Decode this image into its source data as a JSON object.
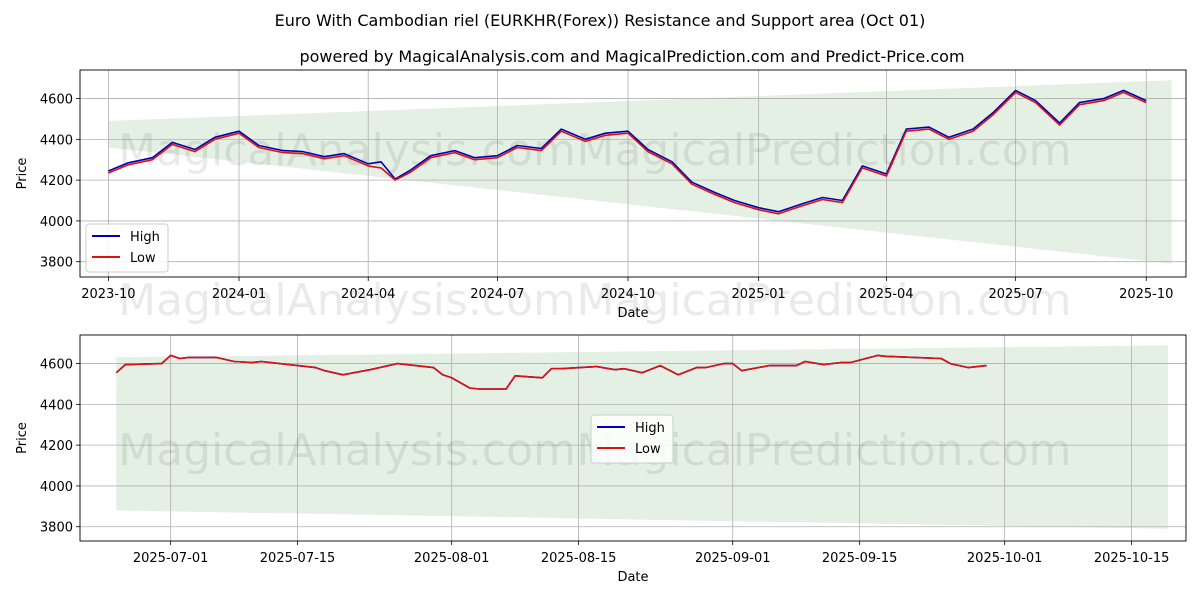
{
  "figure": {
    "title": "Euro With Cambodian riel (EURKHR(Forex)) Resistance and Support area (Oct 01)",
    "subtitle": "powered by MagicalAnalysis.com and MagicalPrediction.com and Predict-Price.com",
    "watermarks": [
      "MagicalAnalysis.com",
      "MagicalPrediction.com"
    ]
  },
  "colors": {
    "high": "#0000bb",
    "low": "#dd1111",
    "band": "#d2e6d2",
    "grid": "#b0b0b0"
  },
  "chart_data": [
    {
      "type": "line",
      "xlabel": "Date",
      "ylabel": "Price",
      "x_tick_labels": [
        "2023-10",
        "2024-01",
        "2024-04",
        "2024-07",
        "2024-10",
        "2025-01",
        "2025-04",
        "2025-07",
        "2025-10"
      ],
      "y_ticks": [
        3800,
        4000,
        4200,
        4400,
        4600
      ],
      "xlim": [
        "2023-09-11",
        "2025-10-29"
      ],
      "ylim": [
        3725,
        4740
      ],
      "grid": true,
      "legend": "lower-left",
      "band": {
        "x": [
          "2023-10-01",
          "2025-10-19"
        ],
        "upper": [
          4490,
          4690
        ],
        "lower": [
          4360,
          3790
        ]
      },
      "series": [
        {
          "name": "High",
          "x": [
            "2023-10-01",
            "2023-10-15",
            "2023-11-01",
            "2023-11-15",
            "2023-12-01",
            "2023-12-15",
            "2024-01-01",
            "2024-01-15",
            "2024-02-01",
            "2024-02-15",
            "2024-03-01",
            "2024-03-15",
            "2024-04-01",
            "2024-04-10",
            "2024-04-20",
            "2024-05-01",
            "2024-05-15",
            "2024-06-01",
            "2024-06-15",
            "2024-07-01",
            "2024-07-15",
            "2024-08-01",
            "2024-08-15",
            "2024-09-01",
            "2024-09-15",
            "2024-10-01",
            "2024-10-15",
            "2024-11-01",
            "2024-11-15",
            "2024-12-01",
            "2024-12-15",
            "2025-01-01",
            "2025-01-15",
            "2025-02-01",
            "2025-02-15",
            "2025-03-01",
            "2025-03-15",
            "2025-04-01",
            "2025-04-15",
            "2025-05-01",
            "2025-05-15",
            "2025-06-01",
            "2025-06-15",
            "2025-07-01",
            "2025-07-15",
            "2025-08-01",
            "2025-08-15",
            "2025-09-01",
            "2025-09-15",
            "2025-10-01"
          ],
          "y": [
            4245,
            4285,
            4310,
            4385,
            4350,
            4410,
            4440,
            4370,
            4345,
            4340,
            4315,
            4330,
            4280,
            4290,
            4205,
            4250,
            4320,
            4345,
            4310,
            4320,
            4370,
            4355,
            4450,
            4400,
            4430,
            4440,
            4350,
            4290,
            4190,
            4140,
            4100,
            4065,
            4045,
            4085,
            4115,
            4100,
            4270,
            4230,
            4450,
            4460,
            4410,
            4450,
            4530,
            4640,
            4590,
            4480,
            4580,
            4600,
            4640,
            4590
          ]
        },
        {
          "name": "Low",
          "x": [
            "2023-10-01",
            "2023-10-15",
            "2023-11-01",
            "2023-11-15",
            "2023-12-01",
            "2023-12-15",
            "2024-01-01",
            "2024-01-15",
            "2024-02-01",
            "2024-02-15",
            "2024-03-01",
            "2024-03-15",
            "2024-04-01",
            "2024-04-10",
            "2024-04-20",
            "2024-05-01",
            "2024-05-15",
            "2024-06-01",
            "2024-06-15",
            "2024-07-01",
            "2024-07-15",
            "2024-08-01",
            "2024-08-15",
            "2024-09-01",
            "2024-09-15",
            "2024-10-01",
            "2024-10-15",
            "2024-11-01",
            "2024-11-15",
            "2024-12-01",
            "2024-12-15",
            "2025-01-01",
            "2025-01-15",
            "2025-02-01",
            "2025-02-15",
            "2025-03-01",
            "2025-03-15",
            "2025-04-01",
            "2025-04-15",
            "2025-05-01",
            "2025-05-15",
            "2025-06-01",
            "2025-06-15",
            "2025-07-01",
            "2025-07-15",
            "2025-08-01",
            "2025-08-15",
            "2025-09-01",
            "2025-09-15",
            "2025-10-01"
          ],
          "y": [
            4235,
            4275,
            4300,
            4375,
            4340,
            4400,
            4430,
            4360,
            4335,
            4330,
            4305,
            4320,
            4270,
            4260,
            4200,
            4240,
            4310,
            4335,
            4300,
            4310,
            4360,
            4345,
            4440,
            4390,
            4420,
            4430,
            4340,
            4280,
            4180,
            4130,
            4090,
            4055,
            4035,
            4075,
            4105,
            4090,
            4260,
            4220,
            4440,
            4450,
            4400,
            4440,
            4520,
            4630,
            4580,
            4470,
            4570,
            4590,
            4630,
            4580
          ]
        }
      ]
    },
    {
      "type": "line",
      "xlabel": "Date",
      "ylabel": "Price",
      "x_tick_labels": [
        "2025-07-01",
        "2025-07-15",
        "2025-08-01",
        "2025-08-15",
        "2025-09-01",
        "2025-09-15",
        "2025-10-01",
        "2025-10-15"
      ],
      "y_ticks": [
        3800,
        4000,
        4200,
        4400,
        4600
      ],
      "xlim": [
        "2025-06-21",
        "2025-10-21"
      ],
      "ylim": [
        3730,
        4740
      ],
      "grid": true,
      "legend": "center",
      "band": {
        "x": [
          "2025-06-25",
          "2025-10-19"
        ],
        "upper": [
          4630,
          4690
        ],
        "lower": [
          3880,
          3790
        ]
      },
      "series": [
        {
          "name": "High",
          "x": [
            "2025-06-25",
            "2025-06-26",
            "2025-06-30",
            "2025-07-01",
            "2025-07-02",
            "2025-07-03",
            "2025-07-06",
            "2025-07-08",
            "2025-07-10",
            "2025-07-11",
            "2025-07-15",
            "2025-07-17",
            "2025-07-18",
            "2025-07-20",
            "2025-07-23",
            "2025-07-26",
            "2025-07-30",
            "2025-07-31",
            "2025-08-01",
            "2025-08-03",
            "2025-08-04",
            "2025-08-05",
            "2025-08-07",
            "2025-08-08",
            "2025-08-11",
            "2025-08-12",
            "2025-08-13",
            "2025-08-17",
            "2025-08-19",
            "2025-08-20",
            "2025-08-22",
            "2025-08-24",
            "2025-08-26",
            "2025-08-28",
            "2025-08-29",
            "2025-08-31",
            "2025-09-01",
            "2025-09-02",
            "2025-09-05",
            "2025-09-08",
            "2025-09-09",
            "2025-09-11",
            "2025-09-13",
            "2025-09-14",
            "2025-09-17",
            "2025-09-18",
            "2025-09-21",
            "2025-09-24",
            "2025-09-25",
            "2025-09-27",
            "2025-09-29"
          ],
          "y": [
            4555,
            4595,
            4600,
            4640,
            4625,
            4630,
            4630,
            4610,
            4605,
            4610,
            4590,
            4580,
            4565,
            4545,
            4570,
            4600,
            4580,
            4545,
            4530,
            4480,
            4475,
            4475,
            4475,
            4540,
            4530,
            4575,
            4575,
            4585,
            4570,
            4575,
            4555,
            4590,
            4545,
            4580,
            4580,
            4600,
            4600,
            4565,
            4590,
            4590,
            4610,
            4595,
            4605,
            4605,
            4640,
            4635,
            4630,
            4625,
            4600,
            4580,
            4590
          ]
        },
        {
          "name": "Low",
          "x": [
            "2025-06-25",
            "2025-06-26",
            "2025-06-30",
            "2025-07-01",
            "2025-07-02",
            "2025-07-03",
            "2025-07-06",
            "2025-07-08",
            "2025-07-10",
            "2025-07-11",
            "2025-07-15",
            "2025-07-17",
            "2025-07-18",
            "2025-07-20",
            "2025-07-23",
            "2025-07-26",
            "2025-07-30",
            "2025-07-31",
            "2025-08-01",
            "2025-08-03",
            "2025-08-04",
            "2025-08-05",
            "2025-08-07",
            "2025-08-08",
            "2025-08-11",
            "2025-08-12",
            "2025-08-13",
            "2025-08-17",
            "2025-08-19",
            "2025-08-20",
            "2025-08-22",
            "2025-08-24",
            "2025-08-26",
            "2025-08-28",
            "2025-08-29",
            "2025-08-31",
            "2025-09-01",
            "2025-09-02",
            "2025-09-05",
            "2025-09-08",
            "2025-09-09",
            "2025-09-11",
            "2025-09-13",
            "2025-09-14",
            "2025-09-17",
            "2025-09-18",
            "2025-09-21",
            "2025-09-24",
            "2025-09-25",
            "2025-09-27",
            "2025-09-29"
          ],
          "y": [
            4555,
            4595,
            4600,
            4640,
            4625,
            4630,
            4630,
            4610,
            4605,
            4610,
            4590,
            4580,
            4565,
            4545,
            4570,
            4600,
            4580,
            4545,
            4530,
            4480,
            4475,
            4475,
            4475,
            4540,
            4530,
            4575,
            4575,
            4585,
            4570,
            4575,
            4555,
            4590,
            4545,
            4580,
            4580,
            4600,
            4600,
            4565,
            4590,
            4590,
            4610,
            4595,
            4605,
            4605,
            4640,
            4635,
            4630,
            4625,
            4600,
            4580,
            4590
          ]
        }
      ]
    }
  ]
}
